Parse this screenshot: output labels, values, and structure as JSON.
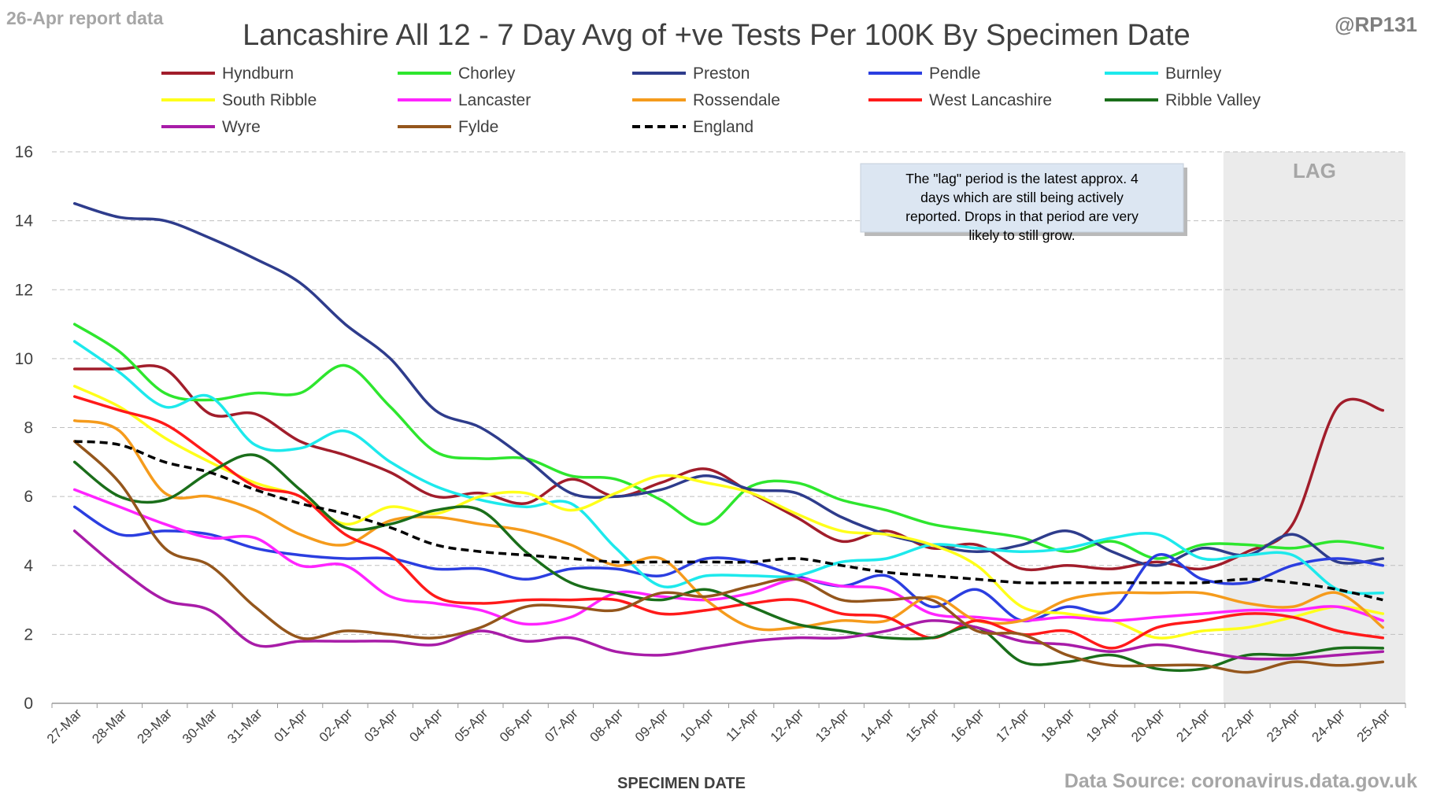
{
  "header": {
    "report_note": "26-Apr report data",
    "handle": "@RP131"
  },
  "footer": {
    "source": "Data Source: coronavirus.data.gov.uk"
  },
  "chart_data": {
    "type": "line",
    "title": "Lancashire All 12 - 7 Day Avg of +ve Tests Per 100K By Specimen Date",
    "xlabel": "SPECIMEN DATE",
    "ylabel": "",
    "ylim": [
      0,
      16
    ],
    "yticks": [
      0,
      2,
      4,
      6,
      8,
      10,
      12,
      14,
      16
    ],
    "grid": "horizontal dashed",
    "legend_position": "top",
    "categories": [
      "27-Mar",
      "28-Mar",
      "29-Mar",
      "30-Mar",
      "31-Mar",
      "01-Apr",
      "02-Apr",
      "03-Apr",
      "04-Apr",
      "05-Apr",
      "06-Apr",
      "07-Apr",
      "08-Apr",
      "09-Apr",
      "10-Apr",
      "11-Apr",
      "12-Apr",
      "13-Apr",
      "14-Apr",
      "15-Apr",
      "16-Apr",
      "17-Apr",
      "18-Apr",
      "19-Apr",
      "20-Apr",
      "21-Apr",
      "22-Apr",
      "23-Apr",
      "24-Apr",
      "25-Apr"
    ],
    "lag_region": {
      "start": "22-Apr",
      "end": "25-Apr",
      "label": "LAG",
      "color": "#ebebeb"
    },
    "annotation": "The \"lag\" period is the latest approx. 4 days which are still being actively reported.  Drops in that period are very likely to still grow.",
    "series": [
      {
        "name": "Hyndburn",
        "color": "#a11d2b",
        "dashed": false,
        "values": [
          9.7,
          9.7,
          9.7,
          8.4,
          8.4,
          7.6,
          7.2,
          6.7,
          6.0,
          6.1,
          5.8,
          6.5,
          6.0,
          6.4,
          6.8,
          6.1,
          5.4,
          4.7,
          5.0,
          4.5,
          4.6,
          3.9,
          4.0,
          3.9,
          4.1,
          3.9,
          4.4,
          5.2,
          8.6,
          8.5
        ]
      },
      {
        "name": "Chorley",
        "color": "#2ee62e",
        "dashed": false,
        "values": [
          11.0,
          10.2,
          9.0,
          8.8,
          9.0,
          9.0,
          9.8,
          8.6,
          7.3,
          7.1,
          7.1,
          6.6,
          6.5,
          5.9,
          5.2,
          6.3,
          6.4,
          5.9,
          5.6,
          5.2,
          5.0,
          4.8,
          4.4,
          4.7,
          4.2,
          4.6,
          4.6,
          4.5,
          4.7,
          4.5
        ]
      },
      {
        "name": "Preston",
        "color": "#2e3c8c",
        "dashed": false,
        "values": [
          14.5,
          14.1,
          14.0,
          13.5,
          12.9,
          12.2,
          11.0,
          10.0,
          8.5,
          8.0,
          7.1,
          6.1,
          6.0,
          6.2,
          6.6,
          6.2,
          6.1,
          5.4,
          4.9,
          4.6,
          4.4,
          4.6,
          5.0,
          4.4,
          4.0,
          4.5,
          4.3,
          4.9,
          4.1,
          4.2
        ]
      },
      {
        "name": "Pendle",
        "color": "#2b3ee0",
        "dashed": false,
        "values": [
          5.7,
          4.9,
          5.0,
          4.9,
          4.5,
          4.3,
          4.2,
          4.2,
          3.9,
          3.9,
          3.6,
          3.9,
          3.9,
          3.7,
          4.2,
          4.1,
          3.7,
          3.4,
          3.7,
          2.8,
          3.3,
          2.4,
          2.8,
          2.7,
          4.3,
          3.6,
          3.5,
          4.0,
          4.2,
          4.0
        ]
      },
      {
        "name": "Burnley",
        "color": "#1de9ec",
        "dashed": false,
        "values": [
          10.5,
          9.6,
          8.6,
          8.9,
          7.5,
          7.4,
          7.9,
          7.0,
          6.3,
          5.9,
          5.7,
          5.8,
          4.5,
          3.4,
          3.7,
          3.7,
          3.7,
          4.1,
          4.2,
          4.6,
          4.5,
          4.4,
          4.5,
          4.8,
          4.9,
          4.2,
          4.3,
          4.3,
          3.3,
          3.2
        ]
      },
      {
        "name": "South Ribble",
        "color": "#ffff1a",
        "dashed": false,
        "values": [
          9.2,
          8.6,
          7.7,
          7.0,
          6.4,
          6.0,
          5.2,
          5.7,
          5.5,
          6.0,
          6.1,
          5.6,
          6.1,
          6.6,
          6.4,
          6.1,
          5.5,
          5.0,
          4.9,
          4.6,
          4.0,
          2.8,
          2.6,
          2.4,
          1.9,
          2.1,
          2.2,
          2.5,
          2.8,
          2.6
        ]
      },
      {
        "name": "Lancaster",
        "color": "#ff24ff",
        "dashed": false,
        "values": [
          6.2,
          5.7,
          5.2,
          4.8,
          4.8,
          4.0,
          4.0,
          3.1,
          2.9,
          2.7,
          2.3,
          2.5,
          3.2,
          3.1,
          3.0,
          3.2,
          3.6,
          3.4,
          3.3,
          2.6,
          2.5,
          2.4,
          2.5,
          2.4,
          2.5,
          2.6,
          2.7,
          2.7,
          2.8,
          2.4
        ]
      },
      {
        "name": "Rossendale",
        "color": "#f59b1c",
        "dashed": false,
        "values": [
          8.2,
          7.9,
          6.1,
          6.0,
          5.6,
          4.9,
          4.6,
          5.3,
          5.4,
          5.2,
          5.0,
          4.6,
          4.0,
          4.2,
          3.0,
          2.2,
          2.2,
          2.4,
          2.4,
          3.1,
          2.4,
          2.4,
          3.0,
          3.2,
          3.2,
          3.2,
          2.9,
          2.8,
          3.2,
          2.2
        ]
      },
      {
        "name": "West Lancashire",
        "color": "#ff1a1a",
        "dashed": false,
        "values": [
          8.9,
          8.5,
          8.1,
          7.2,
          6.3,
          6.0,
          4.9,
          4.3,
          3.1,
          2.9,
          3.0,
          3.0,
          3.0,
          2.6,
          2.7,
          2.9,
          3.0,
          2.6,
          2.5,
          1.9,
          2.4,
          2.0,
          2.1,
          1.6,
          2.2,
          2.4,
          2.6,
          2.5,
          2.1,
          1.9
        ]
      },
      {
        "name": "Ribble Valley",
        "color": "#1a6e1a",
        "dashed": false,
        "values": [
          7.0,
          6.0,
          5.9,
          6.7,
          7.2,
          6.2,
          5.1,
          5.2,
          5.6,
          5.6,
          4.4,
          3.5,
          3.2,
          3.0,
          3.3,
          2.8,
          2.3,
          2.1,
          1.9,
          1.9,
          2.2,
          1.2,
          1.2,
          1.4,
          1.0,
          1.0,
          1.4,
          1.4,
          1.6,
          1.6
        ]
      },
      {
        "name": "Wyre",
        "color": "#a81ca8",
        "dashed": false,
        "values": [
          5.0,
          3.9,
          3.0,
          2.7,
          1.7,
          1.8,
          1.8,
          1.8,
          1.7,
          2.1,
          1.8,
          1.9,
          1.5,
          1.4,
          1.6,
          1.8,
          1.9,
          1.9,
          2.1,
          2.4,
          2.2,
          1.8,
          1.7,
          1.5,
          1.7,
          1.5,
          1.3,
          1.3,
          1.4,
          1.5
        ]
      },
      {
        "name": "Fylde",
        "color": "#94561c",
        "dashed": false,
        "values": [
          7.6,
          6.4,
          4.5,
          4.0,
          2.8,
          1.9,
          2.1,
          2.0,
          1.9,
          2.2,
          2.8,
          2.8,
          2.7,
          3.2,
          3.1,
          3.4,
          3.6,
          3.0,
          3.0,
          3.0,
          2.1,
          2.0,
          1.4,
          1.1,
          1.1,
          1.1,
          0.9,
          1.2,
          1.1,
          1.2
        ]
      },
      {
        "name": "England",
        "color": "#000000",
        "dashed": true,
        "values": [
          7.6,
          7.5,
          7.0,
          6.7,
          6.2,
          5.8,
          5.5,
          5.1,
          4.6,
          4.4,
          4.3,
          4.2,
          4.1,
          4.1,
          4.1,
          4.1,
          4.2,
          4.0,
          3.8,
          3.7,
          3.6,
          3.5,
          3.5,
          3.5,
          3.5,
          3.5,
          3.6,
          3.5,
          3.3,
          3.0
        ]
      }
    ]
  }
}
